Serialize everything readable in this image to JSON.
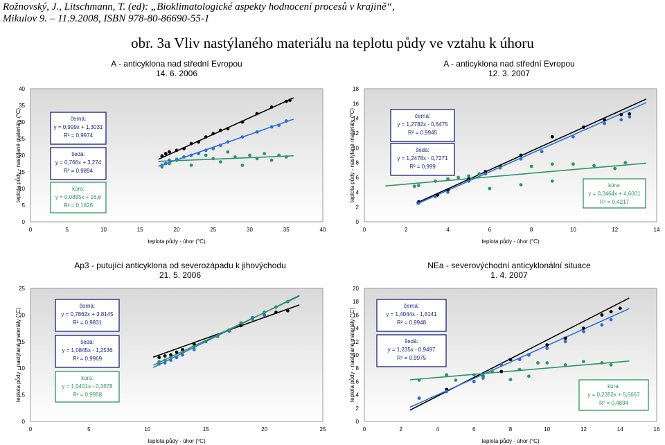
{
  "header": {
    "citation_line1": "Rožnovský, J., Litschmann, T. (ed): „Bioklimatologické aspekty hodnocení procesů v krajině“,",
    "citation_line2": "Mikulov 9. – 11.9.2008, ISBN 978-80-86690-55-1",
    "figure_title": "obr. 3a Vliv nastýlaného materiálu na teplotu půdy ve vztahu k úhoru"
  },
  "colors": {
    "black": "#000000",
    "grey": "#2f6fd6",
    "straw": "#2e9368"
  },
  "chart_data": [
    {
      "type": "scatter",
      "title_line1": "A - anticyklona nad střední Evropou",
      "title_line2": "14. 6. 2006",
      "xlabel": "teplota půdy - úhor (°C)",
      "ylabel": "teplota půdy - nastýlané materiály (°C)",
      "xlim": [
        0,
        40
      ],
      "ylim": [
        0,
        40
      ],
      "xticks": [
        0,
        5,
        10,
        15,
        20,
        25,
        30,
        35,
        40
      ],
      "yticks": [
        0,
        5,
        10,
        15,
        20,
        25,
        30,
        35,
        40
      ],
      "series": [
        {
          "name": "černá",
          "color": "#000000",
          "equation": "y = 0,999x + 1,3031",
          "r2": "R² = 0,9974",
          "trend": [
            0.999,
            1.3031
          ],
          "trend_range": [
            17.5,
            36
          ],
          "points": [
            [
              18,
              19.8
            ],
            [
              18.5,
              20.5
            ],
            [
              19,
              21
            ],
            [
              20,
              21.5
            ],
            [
              21,
              22
            ],
            [
              22,
              23.5
            ],
            [
              23,
              24
            ],
            [
              24,
              25.5
            ],
            [
              25,
              26.5
            ],
            [
              26,
              27.5
            ],
            [
              27,
              28
            ],
            [
              29,
              30
            ],
            [
              31,
              32.5
            ],
            [
              33,
              34.5
            ],
            [
              35,
              36.2
            ],
            [
              35.5,
              36.5
            ]
          ]
        },
        {
          "name": "šedá",
          "color": "#2f6fd6",
          "equation": "y = 0,766x + 3,274",
          "r2": "R² = 0,9894",
          "trend": [
            0.766,
            3.274
          ],
          "trend_range": [
            17.5,
            36
          ],
          "points": [
            [
              18,
              17
            ],
            [
              18.5,
              17.5
            ],
            [
              19,
              18.5
            ],
            [
              20,
              18.8
            ],
            [
              21,
              19.5
            ],
            [
              22,
              20
            ],
            [
              23,
              20.5
            ],
            [
              24,
              21.5
            ],
            [
              25,
              22
            ],
            [
              26,
              23
            ],
            [
              27,
              24
            ],
            [
              29,
              25.5
            ],
            [
              31,
              27
            ],
            [
              33,
              28.5
            ],
            [
              34,
              29
            ],
            [
              35,
              30.3
            ]
          ]
        },
        {
          "name": "kúra",
          "color": "#2e9368",
          "equation": "y = 0,0895x + 16,6",
          "r2": "R² = 0,1826",
          "trend": [
            0.0895,
            16.6
          ],
          "trend_range": [
            17.5,
            36
          ],
          "points": [
            [
              18,
              16.5
            ],
            [
              19,
              17.5
            ],
            [
              20,
              18.5
            ],
            [
              22,
              17
            ],
            [
              24,
              20
            ],
            [
              25,
              19
            ],
            [
              26,
              18
            ],
            [
              27,
              21
            ],
            [
              28,
              19.5
            ],
            [
              29,
              17
            ],
            [
              30,
              20
            ],
            [
              31,
              19
            ],
            [
              32,
              20.5
            ],
            [
              33,
              18.5
            ],
            [
              34,
              20
            ],
            [
              35,
              19.5
            ]
          ]
        }
      ]
    },
    {
      "type": "scatter",
      "title_line1": "A - anticyklona nad střední Evropou",
      "title_line2": "12. 3. 2007",
      "xlabel": "teplota půdy - úhor (°C)",
      "ylabel": "teplota půdy - nastýlané materiály (°C)",
      "xlim": [
        0,
        14
      ],
      "ylim": [
        0,
        18
      ],
      "xticks": [
        0,
        2,
        4,
        6,
        8,
        10,
        12,
        14
      ],
      "yticks": [
        0,
        2,
        4,
        6,
        8,
        10,
        12,
        14,
        16,
        18
      ],
      "series": [
        {
          "name": "černá",
          "color": "#000000",
          "equation": "y = 1,2782x - 0,6475",
          "r2": "R² = 0,9945",
          "trend": [
            1.2782,
            -0.6475
          ],
          "trend_range": [
            2.5,
            13.5
          ],
          "points": [
            [
              2.6,
              2.7
            ],
            [
              3.5,
              3.6
            ],
            [
              4,
              4.3
            ],
            [
              5,
              5.8
            ],
            [
              5.8,
              6.8
            ],
            [
              6.5,
              7.5
            ],
            [
              7.5,
              9
            ],
            [
              9,
              11.5
            ],
            [
              10.5,
              12.8
            ],
            [
              11.5,
              13.8
            ],
            [
              12.3,
              14.5
            ],
            [
              12.7,
              14.6
            ]
          ]
        },
        {
          "name": "šedá",
          "color": "#2f6fd6",
          "equation": "y = 1,2478x - 0,7271",
          "r2": "R² = 0,999",
          "trend": [
            1.2478,
            -0.7271
          ],
          "trend_range": [
            2.5,
            13.5
          ],
          "points": [
            [
              2.6,
              2.5
            ],
            [
              3.4,
              3.4
            ],
            [
              4,
              4
            ],
            [
              5,
              5.5
            ],
            [
              5.8,
              6.5
            ],
            [
              6.5,
              7.3
            ],
            [
              7.5,
              8.5
            ],
            [
              8.5,
              9.5
            ],
            [
              10,
              11.5
            ],
            [
              11.5,
              13.3
            ],
            [
              12.3,
              13.8
            ],
            [
              12.7,
              14.2
            ]
          ]
        },
        {
          "name": "kúra",
          "color": "#2e9368",
          "equation": "y = 0,2464x + 4,6001",
          "r2": "R² = 0,4217",
          "trend": [
            0.2464,
            4.6001
          ],
          "trend_range": [
            1,
            13.5
          ],
          "points": [
            [
              2.4,
              4.8
            ],
            [
              2.6,
              4.9
            ],
            [
              3.4,
              5.5
            ],
            [
              4,
              5.8
            ],
            [
              4.5,
              6
            ],
            [
              5,
              6.2
            ],
            [
              5.5,
              6.5
            ],
            [
              6,
              4.5
            ],
            [
              6.5,
              7.3
            ],
            [
              7.5,
              5
            ],
            [
              8,
              7.5
            ],
            [
              9,
              5.5
            ],
            [
              9,
              7.8
            ],
            [
              10,
              7.8
            ],
            [
              11,
              7.6
            ],
            [
              12,
              7.2
            ],
            [
              12.5,
              8
            ]
          ]
        }
      ]
    },
    {
      "type": "scatter",
      "title_line1": "Ap3 - putující anticyklona od severozápadu k jihovýchodu",
      "title_line2": "21. 5. 2006",
      "xlabel": "teplota půdy - úhor (°C)",
      "ylabel": "teplota půdy - nastýlané materiály (°C)",
      "xlim": [
        0,
        25
      ],
      "ylim": [
        0,
        25
      ],
      "xticks": [
        0,
        5,
        10,
        15,
        20,
        25
      ],
      "yticks": [
        0,
        5,
        10,
        15,
        20,
        25
      ],
      "series": [
        {
          "name": "černá",
          "color": "#000000",
          "equation": "y = 0,7862x + 3,8145",
          "r2": "R² = 0,9831",
          "trend": [
            0.7862,
            3.8145
          ],
          "trend_range": [
            10.5,
            23
          ],
          "points": [
            [
              11,
              12
            ],
            [
              11.5,
              12.3
            ],
            [
              12,
              12.5
            ],
            [
              12.5,
              13
            ],
            [
              13,
              13.5
            ],
            [
              14,
              14.5
            ],
            [
              15,
              15
            ],
            [
              16,
              16
            ],
            [
              17,
              17
            ],
            [
              18,
              18
            ],
            [
              19,
              19.5
            ],
            [
              20,
              20
            ],
            [
              21,
              20.5
            ],
            [
              22,
              20.8
            ]
          ]
        },
        {
          "name": "šedá",
          "color": "#2f6fd6",
          "equation": "y = 1,0845x - 1,2536",
          "r2": "R² = 0,9969",
          "trend": [
            1.0845,
            -1.2536
          ],
          "trend_range": [
            10.5,
            23
          ],
          "points": [
            [
              11,
              10.8
            ],
            [
              11.5,
              11
            ],
            [
              12,
              11.5
            ],
            [
              12.5,
              12
            ],
            [
              13,
              12.5
            ],
            [
              14,
              13.5
            ],
            [
              15,
              15
            ],
            [
              16,
              16
            ],
            [
              17,
              17
            ],
            [
              18,
              18.5
            ],
            [
              19,
              19.5
            ],
            [
              20,
              20
            ],
            [
              21,
              21.5
            ],
            [
              22,
              22.5
            ]
          ]
        },
        {
          "name": "kúra",
          "color": "#2e9368",
          "equation": "y = 1,0401x - 0,3678",
          "r2": "R² = 0,9958",
          "trend": [
            1.0401,
            -0.3678
          ],
          "trend_range": [
            10.5,
            23
          ],
          "points": [
            [
              11,
              11.2
            ],
            [
              11.5,
              11.5
            ],
            [
              12,
              12
            ],
            [
              13,
              13
            ],
            [
              14,
              14
            ],
            [
              15,
              15
            ],
            [
              16,
              16
            ],
            [
              17,
              17.2
            ],
            [
              18,
              18.5
            ],
            [
              19,
              19.2
            ],
            [
              20,
              20.5
            ],
            [
              21,
              21.5
            ],
            [
              22,
              22.5
            ]
          ]
        }
      ]
    },
    {
      "type": "scatter",
      "title_line1": "NEa - severovýchodní anticyklonální situace",
      "title_line2": "1. 4. 2007",
      "xlabel": "teplota půdy - úhor (°C)",
      "ylabel": "teplota půdy - nastýlané materiály (°C)",
      "xlim": [
        0,
        16
      ],
      "ylim": [
        0,
        20
      ],
      "xticks": [
        0,
        2,
        4,
        6,
        8,
        10,
        12,
        14,
        16
      ],
      "yticks": [
        0,
        2,
        4,
        6,
        8,
        10,
        12,
        14,
        16,
        18,
        20
      ],
      "series": [
        {
          "name": "černá",
          "color": "#000000",
          "equation": "y = 1,4044x - 1,8141",
          "r2": "R² = 0,9948",
          "trend": [
            1.4044,
            -1.8141
          ],
          "trend_range": [
            2.5,
            14.5
          ],
          "points": [
            [
              3,
              3.5
            ],
            [
              4.5,
              4.8
            ],
            [
              6,
              6
            ],
            [
              6.5,
              6.8
            ],
            [
              7.5,
              7.5
            ],
            [
              8,
              9.3
            ],
            [
              9,
              10
            ],
            [
              10,
              11.5
            ],
            [
              11,
              12.5
            ],
            [
              12,
              14
            ],
            [
              13,
              16
            ],
            [
              13.5,
              16.5
            ],
            [
              14,
              17
            ]
          ]
        },
        {
          "name": "šedá",
          "color": "#2f6fd6",
          "equation": "y = 1,235x - 0,9497",
          "r2": "R² = 0,9975",
          "trend": [
            1.235,
            -0.9497
          ],
          "trend_range": [
            2.5,
            14.5
          ],
          "points": [
            [
              3,
              3.5
            ],
            [
              4.5,
              4.5
            ],
            [
              6,
              6
            ],
            [
              6.5,
              6.8
            ],
            [
              7.5,
              8.5
            ],
            [
              8.5,
              9.3
            ],
            [
              9,
              10
            ],
            [
              10,
              11
            ],
            [
              11,
              12
            ],
            [
              12,
              13.5
            ],
            [
              13,
              14.5
            ],
            [
              13.5,
              15.3
            ]
          ]
        },
        {
          "name": "kúra",
          "color": "#2e9368",
          "equation": "y = 0,2352x + 5,6667",
          "r2": "R² = 0,4894",
          "trend": [
            0.2352,
            5.6667
          ],
          "trend_range": [
            2.5,
            14.5
          ],
          "points": [
            [
              3,
              6.2
            ],
            [
              4.5,
              7
            ],
            [
              5,
              6.2
            ],
            [
              6,
              7
            ],
            [
              6.5,
              6.5
            ],
            [
              7,
              7.5
            ],
            [
              8,
              6.3
            ],
            [
              8.5,
              7.8
            ],
            [
              9,
              6.8
            ],
            [
              9.5,
              8.8
            ],
            [
              10,
              8.8
            ],
            [
              11,
              8.5
            ],
            [
              12,
              9
            ],
            [
              13,
              8.8
            ],
            [
              13.5,
              8.5
            ]
          ]
        }
      ]
    }
  ]
}
